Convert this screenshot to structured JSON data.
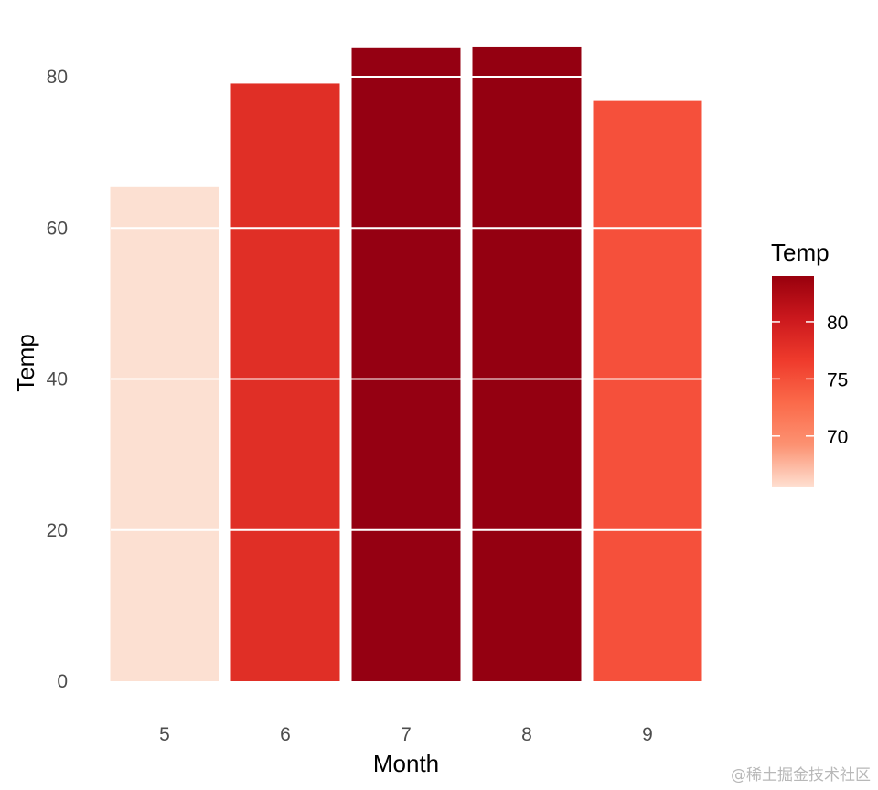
{
  "chart_data": {
    "type": "bar",
    "categories": [
      "5",
      "6",
      "7",
      "8",
      "9"
    ],
    "values": [
      65.5,
      79.1,
      83.9,
      84.0,
      76.9
    ],
    "xlabel": "Month",
    "ylabel": "Temp",
    "ylim": [
      0,
      85
    ],
    "yticks": [
      0,
      20,
      40,
      60,
      80
    ],
    "grid": true,
    "gridlines_color": "#ffffff",
    "legend": {
      "title": "Temp",
      "position": "right",
      "type": "colorbar",
      "ticks": [
        70,
        75,
        80
      ],
      "range": [
        65.5,
        84.0
      ],
      "colors": [
        "#fee0d2",
        "#fc9272",
        "#fb6a4a",
        "#ef3b2c",
        "#cb181d",
        "#99000d"
      ]
    },
    "bar_colors": [
      "#fce0d2",
      "#e02f26",
      "#950012",
      "#940011",
      "#f5503b"
    ]
  },
  "watermark": "@稀土掘金技术社区"
}
